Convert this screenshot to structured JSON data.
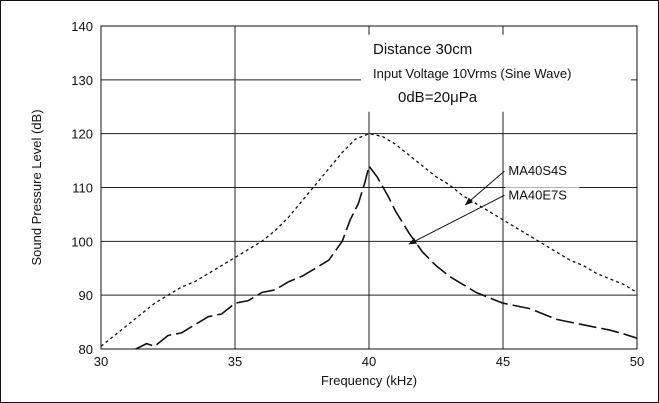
{
  "chart_data": {
    "type": "line",
    "xlabel": "Frequency (kHz)",
    "ylabel": "Sound Pressure Level (dB)",
    "xlim": [
      30,
      50
    ],
    "ylim": [
      80,
      140
    ],
    "x_ticks": [
      30,
      35,
      40,
      45,
      50
    ],
    "y_ticks": [
      80,
      90,
      100,
      110,
      120,
      130,
      140
    ],
    "grid": true,
    "annotation_lines": [
      "Distance  30cm",
      "Input Voltage  10Vrms (Sine Wave)",
      "0dB=20μPa"
    ],
    "series": [
      {
        "name": "MA40S4S",
        "style": "dotted",
        "label_at_x": 45.2,
        "arrow_to": [
          43.6,
          106.8
        ],
        "x": [
          30,
          30.5,
          31,
          31.5,
          32,
          32.5,
          33,
          33.5,
          34,
          34.5,
          35,
          35.5,
          36,
          36.5,
          37,
          37.5,
          38,
          38.5,
          39,
          39.5,
          40,
          40.5,
          41,
          41.5,
          42,
          42.5,
          43,
          43.5,
          44,
          44.5,
          45,
          45.5,
          46,
          46.5,
          47,
          47.5,
          48,
          48.5,
          49,
          49.5,
          50
        ],
        "y": [
          80.5,
          82.5,
          84.5,
          86.5,
          88.5,
          90,
          91.5,
          92.5,
          94,
          95.5,
          97,
          98.5,
          100,
          102,
          104.5,
          107.5,
          110.5,
          113.5,
          116.5,
          119,
          120,
          119.5,
          118,
          116,
          114,
          112,
          110.5,
          108.5,
          107,
          105.5,
          104,
          102.5,
          101,
          99.5,
          98,
          96.5,
          95.5,
          94,
          93,
          92,
          90.5
        ]
      },
      {
        "name": "MA40E7S",
        "style": "dashed",
        "label_at_x": 45.2,
        "arrow_to": [
          41.5,
          99.5
        ],
        "x": [
          31.3,
          31.7,
          32,
          32.5,
          33,
          33.5,
          34,
          34.5,
          35,
          35.5,
          36,
          36.5,
          37,
          37.5,
          38,
          38.5,
          39,
          39.3,
          39.6,
          39.85,
          40,
          40.3,
          40.7,
          41,
          41.5,
          42,
          42.5,
          43,
          43.5,
          44,
          44.5,
          45,
          45.5,
          46,
          46.5,
          47,
          47.5,
          48,
          48.5,
          49,
          49.5,
          50
        ],
        "y": [
          80,
          81,
          80.5,
          82.5,
          83,
          84.5,
          86,
          86.5,
          88.5,
          89,
          90.5,
          91,
          92.5,
          93.5,
          95,
          96.5,
          100,
          104,
          107,
          111,
          114,
          112,
          108.5,
          105.5,
          101.5,
          98,
          95.5,
          93.5,
          92,
          90.5,
          89.5,
          88.5,
          88,
          87.5,
          86.5,
          85.5,
          85,
          84.5,
          84,
          83.5,
          82.8,
          82
        ]
      }
    ]
  }
}
